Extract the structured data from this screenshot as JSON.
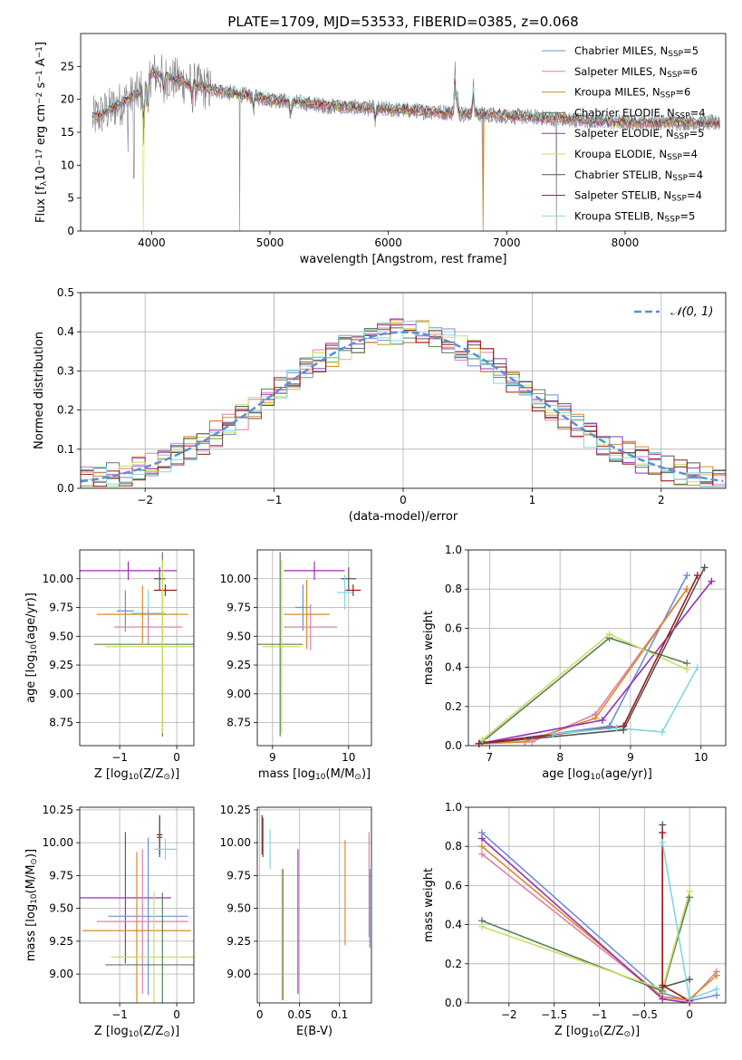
{
  "figure": {
    "title": "PLATE=1709, MJD=53533, FIBERID=0385, z=0.068"
  },
  "legend": {
    "entries": [
      {
        "label": "Chabrier MILES, N",
        "sub": "SSP",
        "suffix": "=5",
        "color": "#6b8fd8"
      },
      {
        "label": "Salpeter MILES, N",
        "sub": "SSP",
        "suffix": "=6",
        "color": "#e07fa8"
      },
      {
        "label": "Kroupa MILES, N",
        "sub": "SSP",
        "suffix": "=6",
        "color": "#d98a2a"
      },
      {
        "label": "Chabrier ELODIE, N",
        "sub": "SSP",
        "suffix": "=4",
        "color": "#5a7f5a"
      },
      {
        "label": "Salpeter ELODIE, N",
        "sub": "SSP",
        "suffix": "=5",
        "color": "#9a30b0"
      },
      {
        "label": "Kroupa ELODIE, N",
        "sub": "SSP",
        "suffix": "=4",
        "color": "#c8e060"
      },
      {
        "label": "Chabrier STELIB, N",
        "sub": "SSP",
        "suffix": "=4",
        "color": "#555555"
      },
      {
        "label": "Salpeter STELIB, N",
        "sub": "SSP",
        "suffix": "=4",
        "color": "#a01818"
      },
      {
        "label": "Kroupa STELIB, N",
        "sub": "SSP",
        "suffix": "=5",
        "color": "#80d8e0"
      }
    ],
    "normal_label": "𝒩(0, 1)",
    "normal_color": "#5b8fd6"
  },
  "chart_data": [
    {
      "id": "spectrum",
      "type": "line",
      "xlabel": "wavelength [Angstrom, rest frame]",
      "ylabel_pre": "Flux [f",
      "ylabel_sub": "λ",
      "ylabel_post": "10",
      "ylabel_sup1": "−17",
      "ylabel_post2": " erg cm",
      "ylabel_sup2": "−2",
      "ylabel_post3": " s",
      "ylabel_sup3": "−1",
      "ylabel_post4": " A",
      "ylabel_sup4": "−1",
      "ylabel_end": "]",
      "xlim": [
        3400,
        8850
      ],
      "ylim": [
        0,
        30
      ],
      "xticks": [
        4000,
        5000,
        6000,
        7000,
        8000
      ],
      "yticks": [
        0,
        5,
        10,
        15,
        20,
        25
      ],
      "grid": false,
      "continuum": [
        [
          3500,
          17
        ],
        [
          3700,
          19
        ],
        [
          3900,
          21
        ],
        [
          4000,
          24
        ],
        [
          4200,
          23
        ],
        [
          4500,
          21.5
        ],
        [
          5000,
          20
        ],
        [
          5500,
          19
        ],
        [
          6000,
          18.5
        ],
        [
          6500,
          18
        ],
        [
          7000,
          17.5
        ],
        [
          7500,
          17
        ],
        [
          8000,
          16.5
        ],
        [
          8500,
          16.5
        ],
        [
          8800,
          16.4
        ]
      ],
      "lines": [
        [
          3934,
          -8
        ],
        [
          3969,
          -6
        ],
        [
          4102,
          -3
        ],
        [
          4340,
          -3
        ],
        [
          4861,
          -2
        ],
        [
          5175,
          -3
        ],
        [
          5890,
          -2
        ],
        [
          6563,
          7
        ],
        [
          6583,
          3
        ],
        [
          6717,
          5
        ]
      ],
      "spikes": [
        [
          4745,
          0
        ],
        [
          6800,
          0
        ],
        [
          7420,
          0
        ],
        [
          3800,
          12
        ],
        [
          3850,
          8
        ]
      ]
    },
    {
      "id": "residuals",
      "type": "histogram",
      "xlabel": "(data-model)/error",
      "ylabel": "Normed distribution",
      "xlim": [
        -2.5,
        2.5
      ],
      "ylim": [
        0,
        0.5
      ],
      "xticks": [
        -2,
        -1,
        0,
        1,
        2
      ],
      "yticks": [
        0.0,
        0.1,
        0.2,
        0.3,
        0.4,
        0.5
      ],
      "grid": true,
      "bin_width": 0.1
    },
    {
      "id": "age-vs-z",
      "type": "errorbar",
      "xlabel_pre": "Z [log",
      "xlabel_sub": "10",
      "xlabel_post": "(Z/Z",
      "xlabel_sub2": "⊙",
      "xlabel_end": ")]",
      "ylabel_pre": "age  [log",
      "ylabel_sub": "10",
      "ylabel_post": "(age/yr)]",
      "xlim": [
        -1.7,
        0.3
      ],
      "ylim": [
        8.55,
        10.25
      ],
      "xticks": [
        -1,
        0
      ],
      "yticks": [
        8.75,
        9.0,
        9.25,
        9.5,
        9.75,
        10.0
      ],
      "grid": true,
      "points": [
        {
          "x": -0.85,
          "xerr": 0.85,
          "y": 10.07,
          "yerr": 0.08,
          "color": "#9a30b0"
        },
        {
          "x": -0.3,
          "xerr": 0.1,
          "y": 10.0,
          "yerr": 0.1,
          "color": "#555555"
        },
        {
          "x": -0.2,
          "xerr": 0.2,
          "y": 9.9,
          "yerr": 0.05,
          "color": "#a01818"
        },
        {
          "x": -0.9,
          "xerr": 0.15,
          "y": 9.72,
          "yerr": 0.18,
          "color": "#6b8fd8"
        },
        {
          "x": -0.5,
          "xerr": 0.3,
          "y": 9.7,
          "yerr": 0.2,
          "color": "#80d8e0"
        },
        {
          "x": -0.6,
          "xerr": 0.8,
          "y": 9.69,
          "yerr": 0.25,
          "color": "#d98a2a"
        },
        {
          "x": -0.5,
          "xerr": 0.6,
          "y": 9.58,
          "yerr": 0.15,
          "color": "#e07fa8"
        },
        {
          "x": -0.25,
          "xerr": 1.2,
          "y": 9.43,
          "yerr": 0.8,
          "color": "#5a7f5a"
        },
        {
          "x": -0.25,
          "xerr": 1.0,
          "y": 9.41,
          "yerr": 0.75,
          "color": "#c8e060"
        }
      ]
    },
    {
      "id": "age-vs-mass",
      "type": "errorbar",
      "xlabel_pre": "mass [log",
      "xlabel_sub": "10",
      "xlabel_post": "(M/M",
      "xlabel_sub2": "⊙",
      "xlabel_end": ")]",
      "ylabel": "",
      "xlim": [
        8.8,
        10.3
      ],
      "ylim": [
        8.55,
        10.25
      ],
      "xticks": [
        9,
        10
      ],
      "yticks": [
        8.75,
        9.0,
        9.25,
        9.5,
        9.75,
        10.0
      ],
      "grid": true,
      "points": [
        {
          "x": 9.55,
          "xerr": 0.4,
          "y": 10.07,
          "yerr": 0.08,
          "color": "#9a30b0"
        },
        {
          "x": 10.0,
          "xerr": 0.1,
          "y": 10.0,
          "yerr": 0.1,
          "color": "#555555"
        },
        {
          "x": 10.06,
          "xerr": 0.1,
          "y": 9.9,
          "yerr": 0.05,
          "color": "#a01818"
        },
        {
          "x": 9.4,
          "xerr": 0.1,
          "y": 9.75,
          "yerr": 0.2,
          "color": "#6b8fd8"
        },
        {
          "x": 9.95,
          "xerr": 0.1,
          "y": 9.88,
          "yerr": 0.15,
          "color": "#80d8e0"
        },
        {
          "x": 9.45,
          "xerr": 0.3,
          "y": 9.69,
          "yerr": 0.3,
          "color": "#d98a2a"
        },
        {
          "x": 9.5,
          "xerr": 0.35,
          "y": 9.58,
          "yerr": 0.2,
          "color": "#e07fa8"
        },
        {
          "x": 9.1,
          "xerr": 0.3,
          "y": 9.43,
          "yerr": 0.8,
          "color": "#5a7f5a"
        },
        {
          "x": 9.12,
          "xerr": 0.25,
          "y": 9.41,
          "yerr": 0.75,
          "color": "#c8e060"
        }
      ]
    },
    {
      "id": "weight-vs-age",
      "type": "line",
      "xlabel_pre": "age  [log",
      "xlabel_sub": "10",
      "xlabel_post": "(age/yr)]",
      "ylabel": "mass weight",
      "xlim": [
        6.7,
        10.35
      ],
      "ylim": [
        0,
        1.0
      ],
      "xticks": [
        7,
        8,
        9,
        10
      ],
      "yticks": [
        0.0,
        0.2,
        0.4,
        0.6,
        0.8,
        1.0
      ],
      "grid": true,
      "series": [
        {
          "color": "#6b8fd8",
          "points": [
            [
              6.85,
              0.01
            ],
            [
              7.9,
              0.06
            ],
            [
              8.7,
              0.1
            ],
            [
              9.8,
              0.87
            ]
          ]
        },
        {
          "color": "#e07fa8",
          "points": [
            [
              6.85,
              0.01
            ],
            [
              7.6,
              0.02
            ],
            [
              8.5,
              0.16
            ],
            [
              9.8,
              0.8
            ]
          ]
        },
        {
          "color": "#d98a2a",
          "points": [
            [
              6.85,
              0.01
            ],
            [
              7.5,
              0.02
            ],
            [
              8.5,
              0.14
            ],
            [
              9.8,
              0.8
            ]
          ]
        },
        {
          "color": "#5a7f5a",
          "points": [
            [
              6.9,
              0.02
            ],
            [
              8.7,
              0.55
            ],
            [
              9.8,
              0.42
            ]
          ]
        },
        {
          "color": "#9a30b0",
          "points": [
            [
              6.85,
              0.01
            ],
            [
              8.6,
              0.13
            ],
            [
              10.15,
              0.84
            ]
          ]
        },
        {
          "color": "#c8e060",
          "points": [
            [
              6.9,
              0.03
            ],
            [
              8.7,
              0.57
            ],
            [
              9.8,
              0.39
            ]
          ]
        },
        {
          "color": "#555555",
          "points": [
            [
              6.85,
              0.01
            ],
            [
              8.9,
              0.08
            ],
            [
              10.05,
              0.91
            ]
          ]
        },
        {
          "color": "#a01818",
          "points": [
            [
              6.85,
              0.01
            ],
            [
              8.9,
              0.1
            ],
            [
              9.95,
              0.87
            ]
          ]
        },
        {
          "color": "#80d8e0",
          "points": [
            [
              7.9,
              0.06
            ],
            [
              8.8,
              0.09
            ],
            [
              9.45,
              0.07
            ],
            [
              9.95,
              0.4
            ]
          ]
        }
      ]
    },
    {
      "id": "mass-vs-z",
      "type": "errorbar",
      "xlabel_pre": "Z [log",
      "xlabel_sub": "10",
      "xlabel_post": "(Z/Z",
      "xlabel_sub2": "⊙",
      "xlabel_end": ")]",
      "ylabel_pre": "mass [log",
      "ylabel_sub": "10",
      "ylabel_post": "(M/M",
      "ylabel_sub2": "⊙",
      "ylabel_end": ")]",
      "xlim": [
        -1.7,
        0.3
      ],
      "ylim": [
        8.78,
        10.27
      ],
      "xticks": [
        -1,
        0
      ],
      "yticks": [
        9.0,
        9.25,
        9.5,
        9.75,
        10.0,
        10.25
      ],
      "grid": true,
      "points": [
        {
          "x": -0.3,
          "xerr": 0.05,
          "y": 10.06,
          "yerr": 0.15,
          "color": "#a01818"
        },
        {
          "x": -0.3,
          "xerr": 0.05,
          "y": 10.04,
          "yerr": 0.15,
          "color": "#555555"
        },
        {
          "x": -0.2,
          "xerr": 0.2,
          "y": 9.95,
          "yerr": 0.08,
          "color": "#80d8e0"
        },
        {
          "x": -0.9,
          "xerr": 0.8,
          "y": 9.58,
          "yerr": 0.5,
          "color": "#9a30b0"
        },
        {
          "x": -0.5,
          "xerr": 0.7,
          "y": 9.44,
          "yerr": 0.6,
          "color": "#6b8fd8"
        },
        {
          "x": -0.6,
          "xerr": 0.8,
          "y": 9.4,
          "yerr": 0.55,
          "color": "#e07fa8"
        },
        {
          "x": -0.7,
          "xerr": 0.95,
          "y": 9.33,
          "yerr": 0.6,
          "color": "#d98a2a"
        },
        {
          "x": -0.4,
          "xerr": 0.75,
          "y": 9.13,
          "yerr": 0.5,
          "color": "#c8e060"
        },
        {
          "x": -0.25,
          "xerr": 1.0,
          "y": 9.07,
          "yerr": 0.55,
          "color": "#5a7f5a"
        }
      ]
    },
    {
      "id": "mass-vs-ebv",
      "type": "errorbar",
      "xlabel": "E(B-V)",
      "ylabel": "",
      "xlim": [
        -0.003,
        0.14
      ],
      "ylim": [
        8.78,
        10.27
      ],
      "xticks": [
        0.0,
        0.05,
        0.1
      ],
      "yticks": [
        9.0,
        9.25,
        9.5,
        9.75,
        10.0,
        10.25
      ],
      "grid": true,
      "points": [
        {
          "x": 0.003,
          "yerr": 0.15,
          "y": 10.06,
          "color": "#a01818"
        },
        {
          "x": 0.004,
          "yerr": 0.15,
          "y": 10.04,
          "color": "#555555"
        },
        {
          "x": 0.013,
          "yerr": 0.15,
          "y": 9.95,
          "color": "#80d8e0"
        },
        {
          "x": 0.028,
          "yerr": 0.5,
          "y": 9.3,
          "color": "#c8e060"
        },
        {
          "x": 0.029,
          "yerr": 0.5,
          "y": 9.3,
          "color": "#5a7f5a"
        },
        {
          "x": 0.048,
          "yerr": 0.55,
          "y": 9.4,
          "color": "#9a30b0"
        },
        {
          "x": 0.107,
          "yerr": 0.4,
          "y": 9.62,
          "color": "#d98a2a"
        },
        {
          "x": 0.137,
          "yerr": 0.4,
          "y": 9.68,
          "color": "#e07fa8"
        },
        {
          "x": 0.138,
          "yerr": 0.3,
          "y": 9.5,
          "color": "#6b8fd8"
        }
      ]
    },
    {
      "id": "weight-vs-z",
      "type": "line",
      "xlabel_pre": "Z [log",
      "xlabel_sub": "10",
      "xlabel_post": "(Z/Z",
      "xlabel_sub2": "⊙",
      "xlabel_end": ")]",
      "ylabel": "mass weight",
      "xlim": [
        -2.45,
        0.4
      ],
      "ylim": [
        0,
        1.0
      ],
      "xticks": [
        -2.0,
        -1.5,
        -1.0,
        -0.5,
        0.0
      ],
      "yticks": [
        0.0,
        0.2,
        0.4,
        0.6,
        0.8,
        1.0
      ],
      "grid": true,
      "series": [
        {
          "color": "#6b8fd8",
          "points": [
            [
              -2.3,
              0.87
            ],
            [
              -0.3,
              0.05
            ],
            [
              0.0,
              0.01
            ],
            [
              0.3,
              0.04
            ]
          ]
        },
        {
          "color": "#e07fa8",
          "points": [
            [
              -2.3,
              0.76
            ],
            [
              -0.3,
              0.03
            ],
            [
              0.0,
              0.01
            ],
            [
              0.3,
              0.16
            ]
          ]
        },
        {
          "color": "#d98a2a",
          "points": [
            [
              -2.3,
              0.8
            ],
            [
              -0.3,
              0.03
            ],
            [
              0.0,
              0.02
            ],
            [
              0.3,
              0.14
            ]
          ]
        },
        {
          "color": "#5a7f5a",
          "points": [
            [
              -2.3,
              0.42
            ],
            [
              -0.3,
              0.06
            ],
            [
              0.0,
              0.54
            ]
          ]
        },
        {
          "color": "#9a30b0",
          "points": [
            [
              -2.3,
              0.84
            ],
            [
              -0.3,
              0.02
            ],
            [
              0.0,
              0.0
            ]
          ]
        },
        {
          "color": "#c8e060",
          "points": [
            [
              -2.3,
              0.39
            ],
            [
              -0.3,
              0.07
            ],
            [
              0.0,
              0.57
            ]
          ]
        },
        {
          "color": "#555555",
          "points": [
            [
              -0.3,
              0.91
            ],
            [
              -0.3,
              0.08
            ],
            [
              0.0,
              0.12
            ]
          ]
        },
        {
          "color": "#a01818",
          "points": [
            [
              -0.3,
              0.87
            ],
            [
              -0.3,
              0.09
            ],
            [
              0.0,
              0.01
            ]
          ]
        },
        {
          "color": "#80d8e0",
          "points": [
            [
              -0.3,
              0.82
            ],
            [
              0.0,
              0.02
            ],
            [
              0.3,
              0.07
            ]
          ]
        }
      ]
    }
  ]
}
